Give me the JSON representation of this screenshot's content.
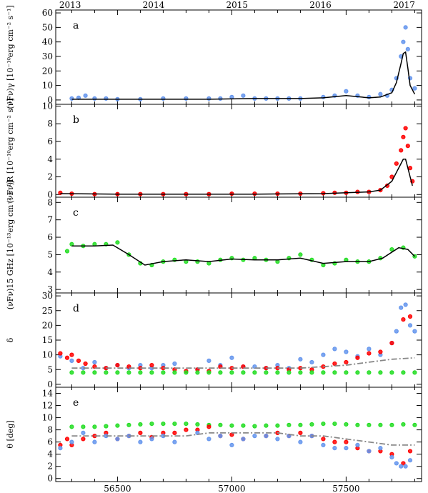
{
  "colors": {
    "gamma": "#6495ed",
    "optical": "#ff0000",
    "radio": "#22dd22",
    "model": "#000000",
    "dashdot": "#888888"
  },
  "chart_data": {
    "type": "scatter",
    "top_axis": {
      "ticks": [
        {
          "year": "2013",
          "mjd": 56293
        },
        {
          "year": "2014",
          "mjd": 56658
        },
        {
          "year": "2015",
          "mjd": 57023
        },
        {
          "year": "2016",
          "mjd": 57388
        },
        {
          "year": "2017",
          "mjd": 57754
        }
      ]
    },
    "xlim": [
      56230,
      57830
    ],
    "xticks": [
      56500,
      57000,
      57500
    ],
    "xtick_labels": [
      "56500",
      "57000",
      "57500"
    ],
    "panels": [
      {
        "letter": "a",
        "ylabel": "(νFν)γ [10⁻¹⁰erg cm⁻² s⁻¹]",
        "ylim": [
          -3,
          62
        ],
        "yticks": [
          0,
          10,
          20,
          30,
          40,
          50,
          60
        ],
        "series": [
          {
            "kind": "scatter",
            "color": "gamma",
            "x": [
              56300,
              56330,
              56360,
              56400,
              56450,
              56500,
              56600,
              56700,
              56800,
              56900,
              56950,
              57000,
              57050,
              57100,
              57150,
              57200,
              57250,
              57300,
              57400,
              57450,
              57500,
              57550,
              57600,
              57650,
              57680,
              57700,
              57720,
              57740,
              57750,
              57760,
              57770,
              57780,
              57800
            ],
            "y": [
              1,
              1.5,
              3,
              1,
              1,
              0.5,
              0.5,
              1,
              1,
              1,
              1,
              2,
              3,
              1,
              1,
              1,
              1,
              1,
              2,
              3,
              6,
              3,
              2,
              4,
              3,
              7,
              15,
              30,
              40,
              50,
              35,
              15,
              8
            ]
          },
          {
            "kind": "line",
            "color": "model",
            "x": [
              56300,
              56500,
              56700,
              56900,
              57100,
              57300,
              57400,
              57500,
              57600,
              57650,
              57700,
              57720,
              57740,
              57750,
              57760,
              57770,
              57780,
              57800
            ],
            "y": [
              0.5,
              0.5,
              0.5,
              0.5,
              1,
              1,
              1.5,
              3,
              1.5,
              2,
              5,
              12,
              25,
              32,
              33,
              22,
              10,
              4
            ]
          }
        ]
      },
      {
        "letter": "b",
        "ylabel": "(νFν)R [10⁻¹⁰erg cm⁻² s⁻¹]",
        "ylim": [
          -0.3,
          10.2
        ],
        "yticks": [
          0,
          2,
          4,
          6,
          8,
          10
        ],
        "series": [
          {
            "kind": "scatter",
            "color": "optical",
            "x": [
              56250,
              56300,
              56400,
              56500,
              56600,
              56700,
              56800,
              56900,
              57000,
              57100,
              57200,
              57300,
              57400,
              57450,
              57500,
              57550,
              57600,
              57650,
              57680,
              57700,
              57720,
              57740,
              57750,
              57760,
              57770,
              57780,
              57790
            ],
            "y": [
              0.2,
              0.1,
              0.05,
              0.05,
              0.05,
              0.05,
              0.05,
              0.05,
              0.1,
              0.1,
              0.1,
              0.1,
              0.15,
              0.2,
              0.2,
              0.3,
              0.3,
              0.5,
              1.0,
              2.0,
              3.5,
              5.0,
              6.5,
              7.5,
              5.5,
              3.0,
              1.5
            ]
          },
          {
            "kind": "line",
            "color": "model",
            "x": [
              56250,
              56500,
              56800,
              57100,
              57400,
              57500,
              57600,
              57650,
              57700,
              57720,
              57740,
              57750,
              57760,
              57770,
              57780,
              57790
            ],
            "y": [
              0.1,
              0.05,
              0.05,
              0.05,
              0.1,
              0.2,
              0.3,
              0.5,
              1.5,
              2.5,
              3.5,
              4.0,
              4.0,
              3.0,
              2.0,
              1.0
            ]
          }
        ]
      },
      {
        "letter": "c",
        "ylabel": "(νFν)15 GHz [10⁻¹³erg cm⁻² s⁻¹]",
        "ylim": [
          2.8,
          8.3
        ],
        "yticks": [
          3,
          4,
          5,
          6,
          7,
          8
        ],
        "series": [
          {
            "kind": "scatter",
            "color": "radio",
            "x": [
              56280,
              56300,
              56350,
              56400,
              56450,
              56500,
              56550,
              56600,
              56650,
              56700,
              56750,
              56800,
              56850,
              56900,
              56950,
              57000,
              57050,
              57100,
              57150,
              57200,
              57250,
              57300,
              57350,
              57400,
              57450,
              57500,
              57550,
              57600,
              57650,
              57700,
              57750,
              57800
            ],
            "y": [
              5.2,
              5.6,
              5.5,
              5.6,
              5.6,
              5.7,
              5.0,
              4.5,
              4.4,
              4.6,
              4.7,
              4.6,
              4.6,
              4.5,
              4.7,
              4.8,
              4.7,
              4.8,
              4.7,
              4.6,
              4.8,
              5.0,
              4.7,
              4.4,
              4.5,
              4.7,
              4.6,
              4.6,
              4.8,
              5.3,
              5.4,
              4.9
            ]
          },
          {
            "kind": "line",
            "color": "model",
            "x": [
              56300,
              56400,
              56480,
              56550,
              56620,
              56700,
              56800,
              56900,
              57000,
              57100,
              57200,
              57300,
              57400,
              57500,
              57600,
              57660,
              57730,
              57770,
              57800
            ],
            "y": [
              5.5,
              5.5,
              5.55,
              5.0,
              4.4,
              4.6,
              4.7,
              4.6,
              4.75,
              4.7,
              4.7,
              4.8,
              4.5,
              4.6,
              4.6,
              4.8,
              5.4,
              5.3,
              4.9
            ]
          }
        ]
      },
      {
        "letter": "d",
        "ylabel": "δ",
        "ylim": [
          -1,
          31
        ],
        "yticks": [
          0,
          5,
          10,
          15,
          20,
          25,
          30
        ],
        "series": [
          {
            "kind": "scatter",
            "color": "gamma",
            "x": [
              56250,
              56300,
              56350,
              56400,
              56450,
              56500,
              56550,
              56600,
              56650,
              56700,
              56750,
              56850,
              56900,
              56950,
              57000,
              57050,
              57100,
              57150,
              57200,
              57250,
              57300,
              57350,
              57400,
              57450,
              57500,
              57550,
              57600,
              57650,
              57700,
              57720,
              57740,
              57760,
              57780,
              57800
            ],
            "y": [
              9.5,
              8.0,
              5.5,
              7.5,
              5.5,
              6.5,
              5.5,
              6.5,
              5.5,
              6.5,
              7.0,
              5.0,
              8.0,
              6.5,
              9.0,
              6.0,
              6.0,
              5.5,
              6.5,
              5.5,
              8.5,
              7.5,
              10.0,
              12.0,
              11.0,
              9.5,
              12.0,
              10.0,
              14.0,
              18.0,
              26.0,
              27.0,
              20.0,
              18.0
            ]
          },
          {
            "kind": "scatter",
            "color": "optical",
            "x": [
              56250,
              56280,
              56300,
              56330,
              56360,
              56400,
              56450,
              56500,
              56550,
              56600,
              56650,
              56700,
              56750,
              56800,
              56850,
              56900,
              56950,
              57000,
              57050,
              57150,
              57200,
              57250,
              57300,
              57350,
              57400,
              57450,
              57500,
              57550,
              57600,
              57650,
              57700,
              57750,
              57780
            ],
            "y": [
              10.5,
              9.0,
              10.0,
              8.0,
              7.0,
              6.0,
              5.5,
              6.5,
              6.0,
              5.5,
              6.5,
              5.5,
              5.0,
              4.5,
              5.0,
              4.5,
              6.0,
              5.5,
              6.0,
              5.5,
              5.5,
              5.0,
              5.5,
              5.0,
              6.0,
              7.0,
              7.5,
              9.0,
              10.5,
              11.0,
              14.0,
              22.0,
              23.0
            ]
          },
          {
            "kind": "scatter",
            "color": "radio",
            "x": [
              56300,
              56350,
              56400,
              56450,
              56500,
              56550,
              56600,
              56650,
              56700,
              56750,
              56800,
              56850,
              56900,
              56950,
              57000,
              57050,
              57100,
              57150,
              57200,
              57250,
              57300,
              57350,
              57400,
              57450,
              57500,
              57550,
              57600,
              57650,
              57700,
              57750,
              57800
            ],
            "y": [
              4.0,
              4.0,
              4.0,
              4.0,
              4.0,
              4.0,
              4.0,
              4.0,
              4.0,
              4.0,
              4.0,
              4.0,
              4.0,
              4.0,
              4.0,
              4.0,
              4.0,
              4.0,
              4.0,
              4.0,
              4.0,
              4.0,
              4.0,
              4.0,
              4.0,
              4.0,
              4.0,
              4.0,
              4.0,
              4.0,
              4.0
            ]
          },
          {
            "kind": "dashdot",
            "color": "dashdot",
            "x": [
              56300,
              56500,
              56800,
              57100,
              57300,
              57400,
              57500,
              57600,
              57700,
              57800
            ],
            "y": [
              5.5,
              5.5,
              5.5,
              5.5,
              5.5,
              6.0,
              6.5,
              7.5,
              8.5,
              9.0
            ]
          }
        ]
      },
      {
        "letter": "e",
        "ylabel": "θ [deg]",
        "ylim": [
          -0.5,
          15
        ],
        "yticks": [
          0,
          2,
          4,
          6,
          8,
          10,
          12,
          14
        ],
        "series": [
          {
            "kind": "scatter",
            "color": "radio",
            "x": [
              56300,
              56350,
              56400,
              56450,
              56500,
              56550,
              56600,
              56650,
              56700,
              56750,
              56800,
              56850,
              56900,
              56950,
              57000,
              57050,
              57100,
              57150,
              57200,
              57250,
              57300,
              57350,
              57400,
              57450,
              57500,
              57550,
              57600,
              57650,
              57700,
              57750,
              57800
            ],
            "y": [
              8.5,
              8.5,
              8.5,
              8.6,
              8.7,
              8.8,
              8.9,
              9.0,
              9.0,
              9.0,
              9.0,
              8.9,
              8.8,
              8.8,
              8.7,
              8.7,
              8.6,
              8.7,
              8.7,
              8.8,
              8.8,
              8.9,
              9.0,
              9.0,
              8.9,
              8.8,
              8.8,
              8.8,
              8.8,
              8.9,
              8.8
            ]
          },
          {
            "kind": "scatter",
            "color": "optical",
            "x": [
              56250,
              56280,
              56300,
              56350,
              56400,
              56450,
              56500,
              56550,
              56600,
              56650,
              56700,
              56750,
              56800,
              56850,
              56900,
              56950,
              57000,
              57050,
              57150,
              57200,
              57250,
              57300,
              57350,
              57400,
              57450,
              57500,
              57550,
              57600,
              57650,
              57700,
              57750,
              57780
            ],
            "y": [
              5.5,
              6.5,
              5.5,
              6.5,
              7.0,
              7.5,
              6.5,
              7.0,
              7.5,
              6.8,
              7.5,
              7.5,
              8.0,
              8.0,
              8.5,
              7.0,
              7.2,
              6.5,
              7.0,
              7.5,
              7.0,
              7.5,
              7.0,
              6.5,
              6.0,
              6.0,
              5.0,
              4.5,
              4.5,
              4.0,
              2.5,
              4.5
            ]
          },
          {
            "kind": "scatter",
            "color": "gamma",
            "x": [
              56250,
              56300,
              56350,
              56400,
              56450,
              56500,
              56550,
              56600,
              56650,
              56700,
              56750,
              56850,
              56900,
              56950,
              57000,
              57050,
              57100,
              57150,
              57200,
              57250,
              57300,
              57350,
              57400,
              57450,
              57500,
              57550,
              57600,
              57650,
              57700,
              57720,
              57740,
              57760,
              57780
            ],
            "y": [
              5.0,
              6.0,
              7.5,
              6.0,
              7.0,
              6.5,
              7.0,
              6.0,
              6.5,
              7.0,
              6.0,
              7.5,
              6.5,
              7.0,
              5.5,
              6.5,
              7.0,
              7.0,
              6.5,
              7.0,
              6.0,
              7.0,
              5.5,
              5.0,
              5.0,
              5.5,
              4.5,
              5.0,
              3.5,
              2.5,
              2.0,
              2.0,
              3.0
            ]
          },
          {
            "kind": "dashdot",
            "color": "dashdot",
            "x": [
              56300,
              56500,
              56800,
              56900,
              57000,
              57100,
              57200,
              57300,
              57400,
              57500,
              57600,
              57700,
              57800
            ],
            "y": [
              7.0,
              7.0,
              7.0,
              7.5,
              7.5,
              7.5,
              7.5,
              7.0,
              7.0,
              6.5,
              6.0,
              5.5,
              5.5
            ]
          }
        ]
      }
    ]
  }
}
